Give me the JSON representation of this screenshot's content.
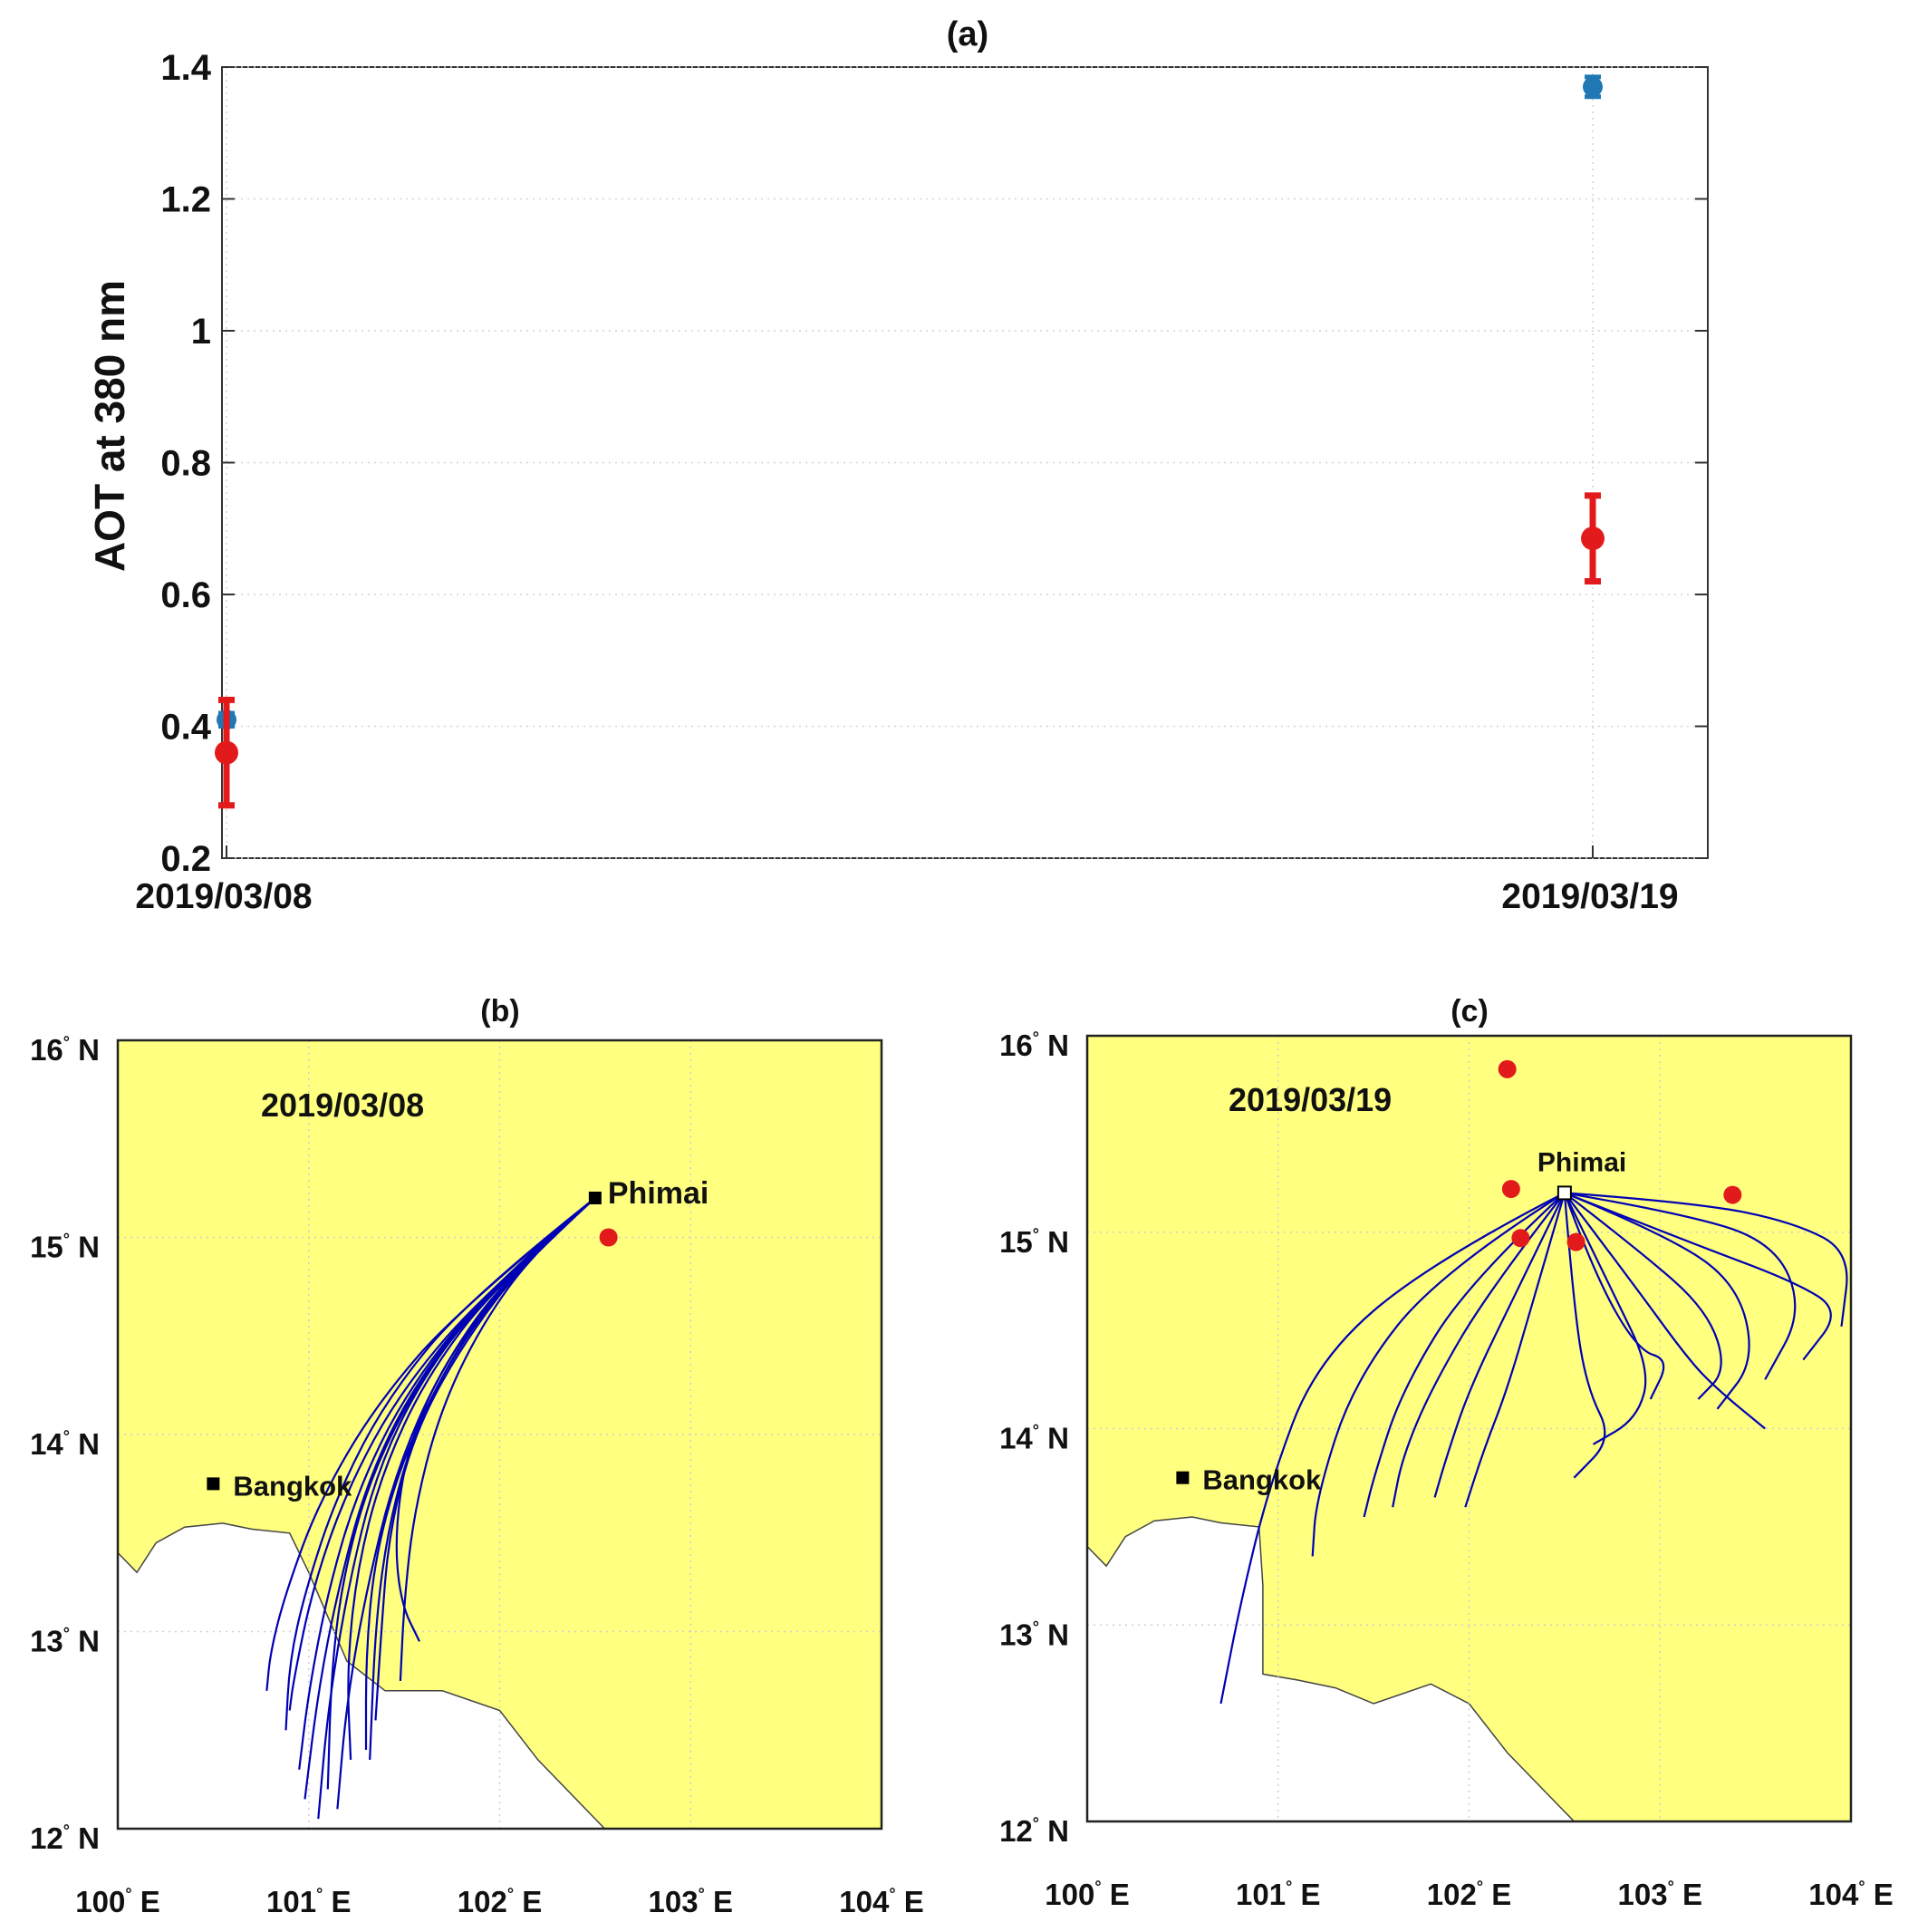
{
  "chart_data": [
    {
      "type": "scatter",
      "title": "(a)",
      "xlabel": "",
      "ylabel": "AOT at 380 nm",
      "ylim": [
        0.2,
        1.4
      ],
      "yticks": [
        "0.2",
        "0.4",
        "0.6",
        "0.8",
        "1",
        "1.2",
        "1.4"
      ],
      "categories": [
        "2019/03/08",
        "2019/03/19"
      ],
      "grid": true,
      "series": [
        {
          "name": "blue",
          "color": "#1f77b4",
          "values": [
            0.41,
            1.37
          ],
          "errors": [
            0.01,
            0.015
          ]
        },
        {
          "name": "red",
          "color": "#e31a1c",
          "values": [
            0.36,
            0.685
          ],
          "errors": [
            0.08,
            0.065
          ]
        }
      ]
    },
    {
      "type": "map",
      "title": "(b)",
      "date_label": "2019/03/08",
      "xticks": [
        "100° E",
        "101° E",
        "102° E",
        "103° E",
        "104° E"
      ],
      "yticks": [
        "12° N",
        "13° N",
        "14° N",
        "15° N",
        "16° N"
      ],
      "lon_range": [
        100,
        104
      ],
      "lat_range": [
        12,
        16
      ],
      "stations": [
        {
          "name": "Phimai",
          "lon": 102.5,
          "lat": 15.2
        },
        {
          "name": "Bangkok",
          "lon": 100.5,
          "lat": 13.75
        }
      ],
      "fire_points": [
        {
          "lon": 102.57,
          "lat": 15.0
        }
      ],
      "land_color": "#ffff80",
      "trajectory_color": "#0000b4",
      "trajectories": [
        [
          [
            102.5,
            15.2
          ],
          [
            102.0,
            14.8
          ],
          [
            101.6,
            14.3
          ],
          [
            101.35,
            13.8
          ],
          [
            101.2,
            13.2
          ],
          [
            101.1,
            12.6
          ],
          [
            101.05,
            12.05
          ]
        ],
        [
          [
            102.5,
            15.2
          ],
          [
            102.05,
            14.82
          ],
          [
            101.7,
            14.35
          ],
          [
            101.45,
            13.8
          ],
          [
            101.3,
            13.2
          ],
          [
            101.2,
            12.65
          ],
          [
            101.15,
            12.1
          ]
        ],
        [
          [
            102.5,
            15.2
          ],
          [
            101.95,
            14.75
          ],
          [
            101.55,
            14.25
          ],
          [
            101.3,
            13.75
          ],
          [
            101.15,
            13.2
          ],
          [
            101.05,
            12.7
          ],
          [
            100.98,
            12.15
          ]
        ],
        [
          [
            102.5,
            15.2
          ],
          [
            102.1,
            14.85
          ],
          [
            101.75,
            14.4
          ],
          [
            101.5,
            13.9
          ],
          [
            101.35,
            13.4
          ],
          [
            101.3,
            12.9
          ],
          [
            101.3,
            12.4
          ]
        ],
        [
          [
            102.5,
            15.2
          ],
          [
            101.9,
            14.7
          ],
          [
            101.5,
            14.2
          ],
          [
            101.25,
            13.7
          ],
          [
            101.1,
            13.2
          ],
          [
            101.0,
            12.7
          ],
          [
            100.95,
            12.3
          ]
        ],
        [
          [
            102.5,
            15.2
          ],
          [
            102.15,
            14.9
          ],
          [
            101.8,
            14.45
          ],
          [
            101.55,
            14.0
          ],
          [
            101.42,
            13.5
          ],
          [
            101.38,
            13.0
          ],
          [
            101.35,
            12.55
          ]
        ],
        [
          [
            102.5,
            15.2
          ],
          [
            101.85,
            14.7
          ],
          [
            101.42,
            14.2
          ],
          [
            101.15,
            13.7
          ],
          [
            100.98,
            13.2
          ],
          [
            100.9,
            12.85
          ],
          [
            100.88,
            12.5
          ]
        ],
        [
          [
            102.5,
            15.2
          ],
          [
            102.0,
            14.78
          ],
          [
            101.62,
            14.3
          ],
          [
            101.38,
            13.8
          ],
          [
            101.25,
            13.3
          ],
          [
            101.2,
            12.8
          ],
          [
            101.22,
            12.35
          ]
        ],
        [
          [
            102.5,
            15.2
          ],
          [
            101.8,
            14.65
          ],
          [
            101.35,
            14.15
          ],
          [
            101.05,
            13.65
          ],
          [
            100.88,
            13.2
          ],
          [
            100.8,
            12.9
          ],
          [
            100.78,
            12.7
          ]
        ],
        [
          [
            102.5,
            15.2
          ],
          [
            102.2,
            14.95
          ],
          [
            101.9,
            14.55
          ],
          [
            101.68,
            14.1
          ],
          [
            101.55,
            13.6
          ],
          [
            101.5,
            13.15
          ],
          [
            101.48,
            12.75
          ]
        ],
        [
          [
            102.5,
            15.2
          ],
          [
            102.05,
            14.8
          ],
          [
            101.72,
            14.38
          ],
          [
            101.52,
            13.95
          ],
          [
            101.45,
            13.5
          ],
          [
            101.48,
            13.15
          ],
          [
            101.58,
            12.95
          ]
        ],
        [
          [
            102.5,
            15.2
          ],
          [
            101.98,
            14.76
          ],
          [
            101.58,
            14.28
          ],
          [
            101.32,
            13.78
          ],
          [
            101.18,
            13.28
          ],
          [
            101.12,
            12.82
          ],
          [
            101.1,
            12.2
          ]
        ],
        [
          [
            102.5,
            15.2
          ],
          [
            101.92,
            14.72
          ],
          [
            101.48,
            14.22
          ],
          [
            101.2,
            13.72
          ],
          [
            101.02,
            13.22
          ],
          [
            100.92,
            12.75
          ],
          [
            100.9,
            12.6
          ]
        ],
        [
          [
            102.5,
            15.2
          ],
          [
            102.12,
            14.88
          ],
          [
            101.78,
            14.45
          ],
          [
            101.55,
            14.0
          ],
          [
            101.42,
            13.55
          ],
          [
            101.35,
            13.05
          ],
          [
            101.32,
            12.35
          ]
        ]
      ]
    },
    {
      "type": "map",
      "title": "(c)",
      "date_label": "2019/03/19",
      "xticks": [
        "100° E",
        "101° E",
        "102° E",
        "103° E",
        "104° E"
      ],
      "yticks": [
        "12° N",
        "13° N",
        "14° N",
        "15° N",
        "16° N"
      ],
      "lon_range": [
        100,
        104
      ],
      "lat_range": [
        12,
        16
      ],
      "stations": [
        {
          "name": "Phimai",
          "lon": 102.5,
          "lat": 15.2
        },
        {
          "name": "Bangkok",
          "lon": 100.5,
          "lat": 13.75
        }
      ],
      "fire_points": [
        {
          "lon": 102.2,
          "lat": 15.83
        },
        {
          "lon": 102.22,
          "lat": 15.22
        },
        {
          "lon": 103.38,
          "lat": 15.19
        },
        {
          "lon": 102.27,
          "lat": 14.97
        },
        {
          "lon": 102.56,
          "lat": 14.95
        }
      ],
      "land_color": "#ffff80",
      "trajectory_color": "#0000b4",
      "trajectories": [
        [
          [
            102.5,
            15.2
          ],
          [
            101.8,
            14.85
          ],
          [
            101.2,
            14.35
          ],
          [
            100.95,
            13.7
          ],
          [
            100.8,
            13.1
          ],
          [
            100.7,
            12.6
          ]
        ],
        [
          [
            102.5,
            15.2
          ],
          [
            101.85,
            14.8
          ],
          [
            101.4,
            14.25
          ],
          [
            101.2,
            13.65
          ],
          [
            101.18,
            13.35
          ]
        ],
        [
          [
            102.5,
            15.2
          ],
          [
            102.0,
            14.75
          ],
          [
            101.65,
            14.2
          ],
          [
            101.5,
            13.75
          ],
          [
            101.45,
            13.55
          ]
        ],
        [
          [
            102.5,
            15.2
          ],
          [
            102.1,
            14.7
          ],
          [
            101.8,
            14.2
          ],
          [
            101.65,
            13.85
          ],
          [
            101.6,
            13.6
          ]
        ],
        [
          [
            102.5,
            15.2
          ],
          [
            102.25,
            14.7
          ],
          [
            102.0,
            14.2
          ],
          [
            101.88,
            13.85
          ],
          [
            101.82,
            13.65
          ]
        ],
        [
          [
            102.5,
            15.2
          ],
          [
            102.35,
            14.7
          ],
          [
            102.2,
            14.2
          ],
          [
            102.08,
            13.9
          ],
          [
            101.98,
            13.6
          ]
        ],
        [
          [
            102.5,
            15.2
          ],
          [
            102.55,
            14.6
          ],
          [
            102.62,
            14.2
          ],
          [
            102.75,
            13.95
          ],
          [
            102.55,
            13.75
          ]
        ],
        [
          [
            102.5,
            15.2
          ],
          [
            102.75,
            14.7
          ],
          [
            102.95,
            14.3
          ],
          [
            102.88,
            14.05
          ],
          [
            102.65,
            13.92
          ]
        ],
        [
          [
            102.5,
            15.2
          ],
          [
            102.9,
            14.9
          ],
          [
            103.25,
            14.6
          ],
          [
            103.35,
            14.3
          ],
          [
            103.2,
            14.15
          ]
        ],
        [
          [
            102.5,
            15.2
          ],
          [
            103.0,
            15.0
          ],
          [
            103.4,
            14.75
          ],
          [
            103.5,
            14.35
          ],
          [
            103.3,
            14.1
          ]
        ],
        [
          [
            102.5,
            15.2
          ],
          [
            103.1,
            15.1
          ],
          [
            103.6,
            14.95
          ],
          [
            103.75,
            14.6
          ],
          [
            103.55,
            14.25
          ]
        ],
        [
          [
            102.5,
            15.2
          ],
          [
            103.2,
            15.15
          ],
          [
            103.7,
            15.05
          ],
          [
            104.0,
            14.9
          ],
          [
            103.95,
            14.52
          ]
        ],
        [
          [
            102.5,
            15.2
          ],
          [
            103.15,
            14.95
          ],
          [
            103.7,
            14.75
          ],
          [
            103.95,
            14.6
          ],
          [
            103.75,
            14.35
          ]
        ],
        [
          [
            102.5,
            15.2
          ],
          [
            102.85,
            14.75
          ],
          [
            103.15,
            14.35
          ],
          [
            103.3,
            14.2
          ],
          [
            103.55,
            14.0
          ]
        ],
        [
          [
            102.5,
            15.2
          ],
          [
            102.65,
            14.8
          ],
          [
            102.88,
            14.4
          ],
          [
            103.05,
            14.35
          ],
          [
            102.95,
            14.15
          ]
        ]
      ]
    }
  ]
}
